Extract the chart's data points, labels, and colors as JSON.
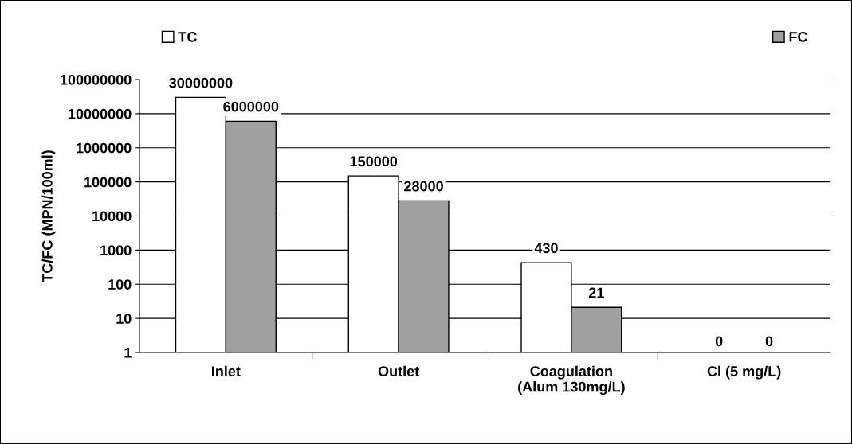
{
  "chart_data": {
    "type": "bar",
    "ylabel": "TC/FC (MPN/100ml)",
    "categories": [
      "Inlet",
      "Outlet",
      "Coagulation\n(Alum 130mg/L)",
      "Cl (5 mg/L)"
    ],
    "series": [
      {
        "name": "TC",
        "color": "#ffffff",
        "values": [
          30000000,
          150000,
          430,
          null
        ],
        "value_labels": [
          "30000000",
          "150000",
          "430",
          "0"
        ]
      },
      {
        "name": "FC",
        "color": "#a0a0a0",
        "values": [
          6000000,
          28000,
          21,
          null
        ],
        "value_labels": [
          "6000000",
          "28000",
          "21",
          "0"
        ]
      }
    ],
    "log": "y",
    "ylim": [
      1,
      100000000
    ],
    "yticks": [
      1,
      10,
      100,
      1000,
      10000,
      100000,
      1000000,
      10000000,
      100000000
    ],
    "grid": "y",
    "legend": "top"
  }
}
